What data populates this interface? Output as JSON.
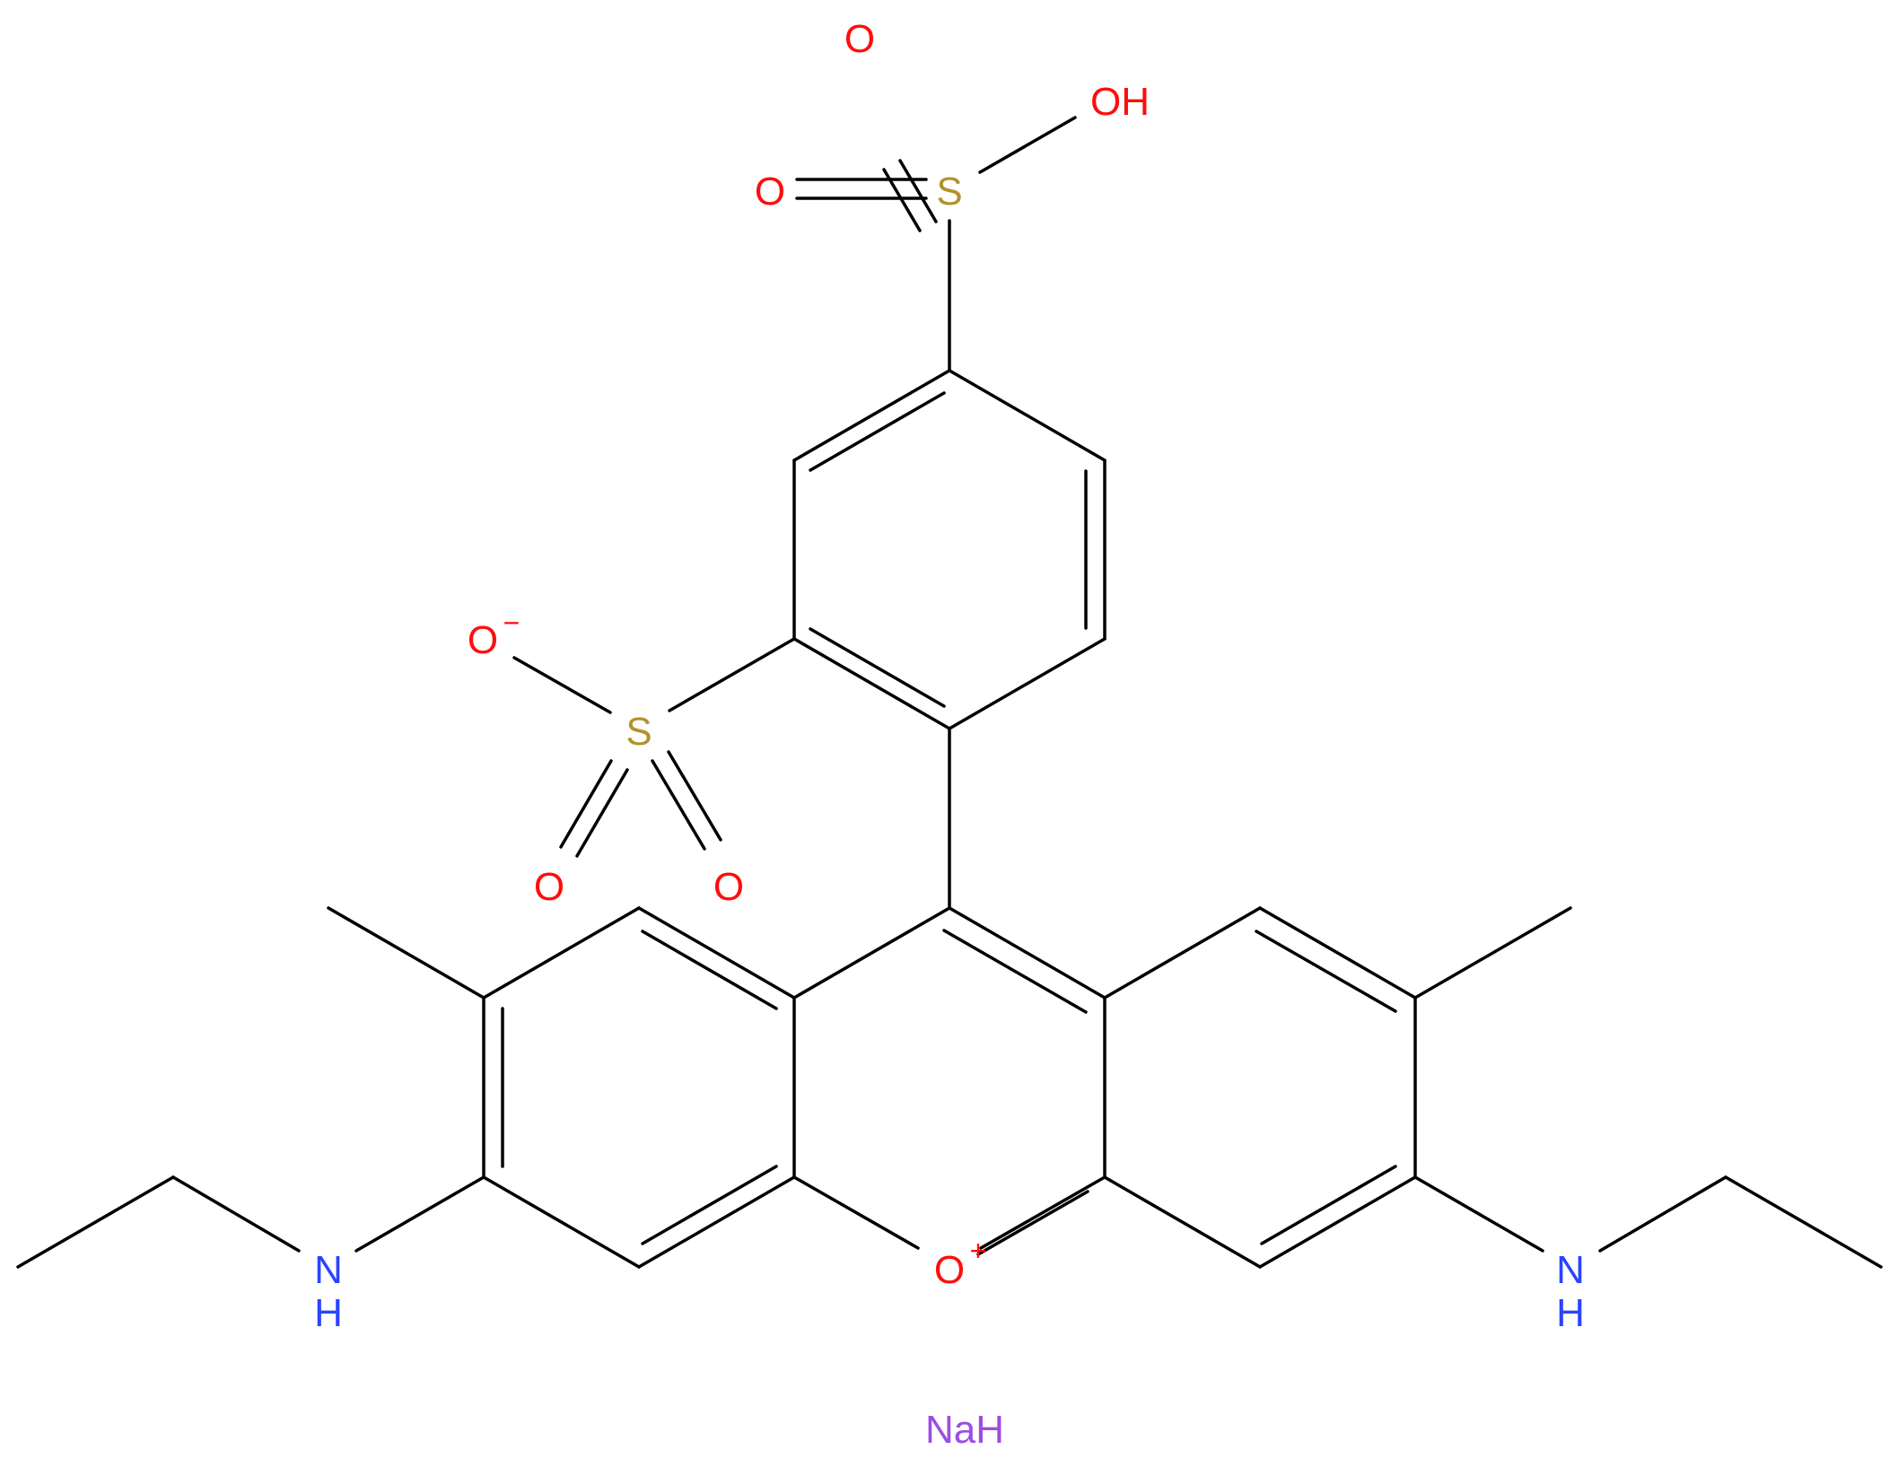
{
  "colors": {
    "bond": "#000000",
    "oxygen": "#ff0d0d",
    "sulfur": "#b2932a",
    "nitrogen": "#2a44ff",
    "sodium": "#9d4ee0"
  },
  "labels": {
    "o_top": "O",
    "oh": "OH",
    "o_left_sulfonic": "O",
    "s_top": "S",
    "o_anion": "O",
    "o_anion_charge": "−",
    "s_middle": "S",
    "o_bottom_left": "O",
    "o_bottom_right": "O",
    "ring_oxygen": "O",
    "ring_oxygen_charge": "+",
    "nh_left_n": "N",
    "nh_left_h": "H",
    "nh_right_n": "N",
    "nh_right_h": "H",
    "counter_ion": "NaH"
  }
}
